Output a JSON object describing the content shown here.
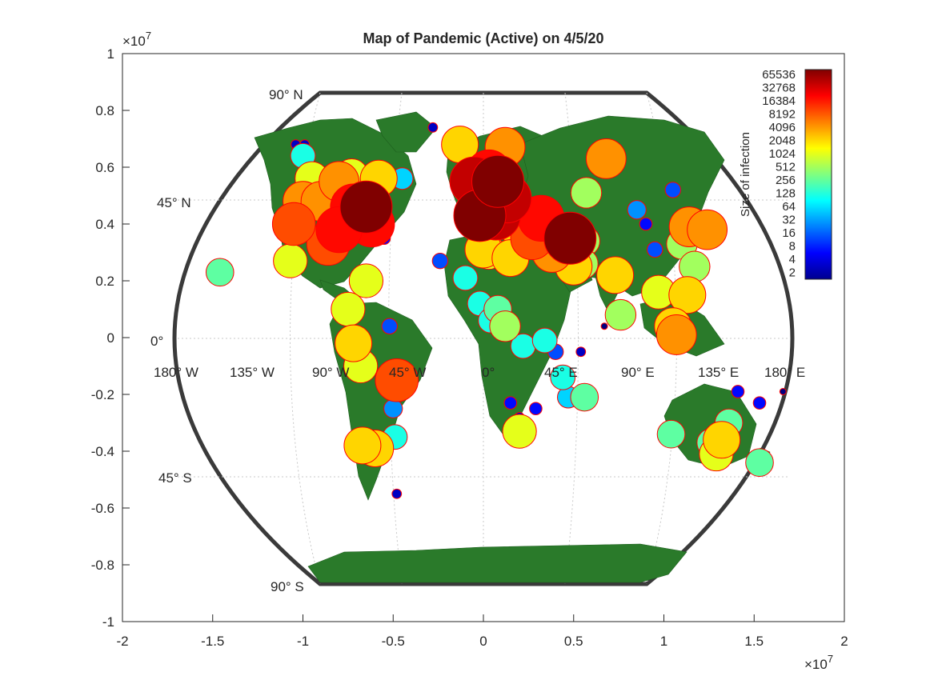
{
  "chart_data": {
    "type": "scatter",
    "title": "Map of Pandemic (Active) on 4/5/20",
    "x_exponent_label": "×10",
    "x_exponent_power": "7",
    "y_exponent_label": "×10",
    "y_exponent_power": "7",
    "xlim": [
      -2,
      2
    ],
    "ylim": [
      -1,
      1
    ],
    "x_ticks": [
      "-2",
      "-1.5",
      "-1",
      "-0.5",
      "0",
      "0.5",
      "1",
      "1.5",
      "2"
    ],
    "y_ticks": [
      "1",
      "0.8",
      "0.6",
      "0.4",
      "0.2",
      "0",
      "-0.2",
      "-0.4",
      "-0.6",
      "-0.8",
      "-1"
    ],
    "lat_labels": [
      "90° N",
      "45° N",
      "0°",
      "45° S",
      "90° S"
    ],
    "lon_labels": [
      "180° W",
      "135° W",
      "90° W",
      "45° W",
      "0°",
      "45° E",
      "90° E",
      "135° E",
      "180° E"
    ],
    "colorbar": {
      "label": "Size of infection",
      "ticks": [
        "65536",
        "32768",
        "16384",
        "8192",
        "4096",
        "2048",
        "1024",
        "512",
        "256",
        "128",
        "64",
        "32",
        "16",
        "8",
        "4",
        "2"
      ],
      "scale": "log2"
    },
    "colors": {
      "land": "#2a7a2a",
      "marker_edge": "#ff0000",
      "frame": "#3a3a3a",
      "grid": "#bdbdbd"
    },
    "points": [
      [
        -0.65,
        0.46,
        65536
      ],
      [
        -0.72,
        0.46,
        16384
      ],
      [
        -0.62,
        0.4,
        16384
      ],
      [
        -0.8,
        0.38,
        16384
      ],
      [
        -0.86,
        0.33,
        8192
      ],
      [
        -1.05,
        0.4,
        8192
      ],
      [
        -1.0,
        0.48,
        4096
      ],
      [
        -0.9,
        0.48,
        4096
      ],
      [
        -0.8,
        0.55,
        4096
      ],
      [
        -0.58,
        0.56,
        2048
      ],
      [
        -0.95,
        0.56,
        1024
      ],
      [
        -1.07,
        0.27,
        1024
      ],
      [
        -0.73,
        0.57,
        1024
      ],
      [
        -0.65,
        0.2,
        1024
      ],
      [
        -0.75,
        0.1,
        1024
      ],
      [
        -0.72,
        -0.02,
        2048
      ],
      [
        -0.68,
        -0.1,
        1024
      ],
      [
        -0.48,
        -0.15,
        8192
      ],
      [
        -0.6,
        -0.39,
        2048
      ],
      [
        -0.67,
        -0.38,
        2048
      ],
      [
        -1.46,
        0.23,
        256
      ],
      [
        -1.0,
        0.64,
        128
      ],
      [
        -0.45,
        0.56,
        64
      ],
      [
        -0.55,
        0.35,
        8
      ],
      [
        -0.52,
        0.04,
        16
      ],
      [
        -0.53,
        -0.17,
        64
      ],
      [
        -0.5,
        -0.25,
        32
      ],
      [
        -0.49,
        -0.35,
        128
      ],
      [
        -0.48,
        -0.55,
        4
      ],
      [
        -0.02,
        0.43,
        65536
      ],
      [
        0.07,
        0.43,
        32768
      ],
      [
        0.08,
        0.55,
        65536
      ],
      [
        -0.05,
        0.55,
        32768
      ],
      [
        0.13,
        0.49,
        32768
      ],
      [
        0.03,
        0.58,
        16384
      ],
      [
        0.32,
        0.42,
        16384
      ],
      [
        0.48,
        0.35,
        65536
      ],
      [
        0.27,
        0.35,
        8192
      ],
      [
        0.12,
        0.67,
        4096
      ],
      [
        0.17,
        0.45,
        4096
      ],
      [
        0.2,
        0.38,
        2048
      ],
      [
        -0.13,
        0.68,
        2048
      ],
      [
        0.03,
        0.3,
        1024
      ],
      [
        0.38,
        0.3,
        4096
      ],
      [
        0.5,
        0.25,
        2048
      ],
      [
        0.68,
        0.63,
        4096
      ],
      [
        0.73,
        0.22,
        2048
      ],
      [
        0.57,
        0.51,
        512
      ],
      [
        0.56,
        0.34,
        512
      ],
      [
        0.97,
        0.16,
        1024
      ],
      [
        1.14,
        0.39,
        4096
      ],
      [
        1.24,
        0.38,
        4096
      ],
      [
        1.1,
        0.33,
        512
      ],
      [
        1.17,
        0.25,
        512
      ],
      [
        1.13,
        0.15,
        2048
      ],
      [
        1.05,
        0.04,
        2048
      ],
      [
        1.07,
        0.01,
        4096
      ],
      [
        0.76,
        0.08,
        512
      ],
      [
        0.0,
        0.31,
        2048
      ],
      [
        0.12,
        0.04,
        512
      ],
      [
        0.21,
        0.36,
        1024
      ],
      [
        0.15,
        0.28,
        2048
      ],
      [
        -0.1,
        0.21,
        128
      ],
      [
        -0.02,
        0.12,
        128
      ],
      [
        0.04,
        0.06,
        128
      ],
      [
        0.08,
        0.1,
        256
      ],
      [
        0.22,
        -0.03,
        128
      ],
      [
        0.34,
        -0.01,
        128
      ],
      [
        0.44,
        -0.14,
        128
      ],
      [
        0.56,
        -0.21,
        256
      ],
      [
        0.47,
        -0.21,
        64
      ],
      [
        0.2,
        -0.33,
        1024
      ],
      [
        0.55,
        0.26,
        512
      ],
      [
        0.85,
        0.45,
        32
      ],
      [
        0.9,
        0.4,
        8
      ],
      [
        0.95,
        0.31,
        16
      ],
      [
        1.05,
        0.52,
        16
      ],
      [
        0.22,
        0.5,
        16
      ],
      [
        1.04,
        -0.34,
        256
      ],
      [
        1.26,
        -0.37,
        256
      ],
      [
        1.32,
        -0.36,
        2048
      ],
      [
        1.36,
        -0.3,
        256
      ],
      [
        1.29,
        -0.41,
        1024
      ],
      [
        1.53,
        -0.44,
        256
      ],
      [
        1.41,
        -0.19,
        8
      ],
      [
        1.53,
        -0.23,
        8
      ],
      [
        1.66,
        -0.19,
        2
      ],
      [
        -0.28,
        0.74,
        4
      ],
      [
        -1.04,
        0.68,
        4
      ],
      [
        -0.99,
        0.68,
        4
      ],
      [
        -0.24,
        0.27,
        16
      ],
      [
        0.4,
        -0.05,
        16
      ],
      [
        0.54,
        -0.05,
        4
      ],
      [
        0.67,
        0.04,
        2
      ],
      [
        0.15,
        -0.23,
        8
      ],
      [
        0.2,
        -0.28,
        4
      ],
      [
        0.29,
        -0.25,
        8
      ]
    ]
  }
}
